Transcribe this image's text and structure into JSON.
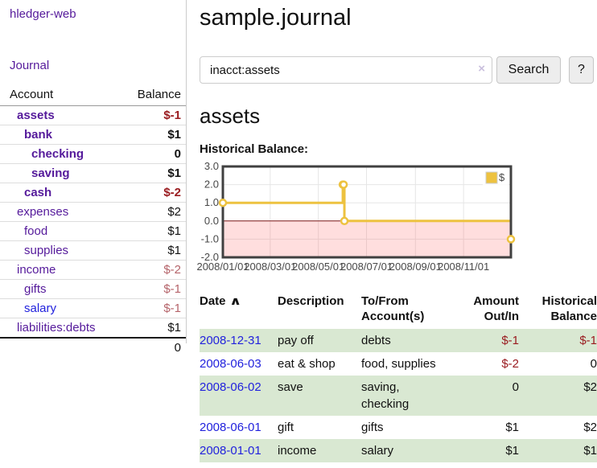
{
  "sidebar": {
    "app_title": "hledger-web",
    "journal_label": "Journal",
    "accounts_table": {
      "headers": {
        "account": "Account",
        "balance": "Balance"
      },
      "rows": [
        {
          "account": "assets",
          "balance": "$-1",
          "indent": 1,
          "bold": true,
          "balance_style": "neg-strong",
          "link_style": "purple"
        },
        {
          "account": "bank",
          "balance": "$1",
          "indent": 2,
          "bold": true,
          "balance_style": "normal",
          "link_style": "purple"
        },
        {
          "account": "checking",
          "balance": "0",
          "indent": 3,
          "bold": true,
          "balance_style": "normal",
          "link_style": "purple"
        },
        {
          "account": "saving",
          "balance": "$1",
          "indent": 3,
          "bold": true,
          "balance_style": "normal",
          "link_style": "purple"
        },
        {
          "account": "cash",
          "balance": "$-2",
          "indent": 2,
          "bold": true,
          "balance_style": "neg-strong",
          "link_style": "purple"
        },
        {
          "account": "expenses",
          "balance": "$2",
          "indent": 1,
          "bold": false,
          "balance_style": "normal",
          "link_style": "purple"
        },
        {
          "account": "food",
          "balance": "$1",
          "indent": 2,
          "bold": false,
          "balance_style": "normal",
          "link_style": "purple"
        },
        {
          "account": "supplies",
          "balance": "$1",
          "indent": 2,
          "bold": false,
          "balance_style": "normal",
          "link_style": "purple"
        },
        {
          "account": "income",
          "balance": "$-2",
          "indent": 1,
          "bold": false,
          "balance_style": "neg-soft",
          "link_style": "purple"
        },
        {
          "account": "gifts",
          "balance": "$-1",
          "indent": 2,
          "bold": false,
          "balance_style": "neg-soft",
          "link_style": "purple"
        },
        {
          "account": "salary",
          "balance": "$-1",
          "indent": 2,
          "bold": false,
          "balance_style": "neg-soft",
          "link_style": "blue"
        },
        {
          "account": "liabilities:debts",
          "balance": "$1",
          "indent": 1,
          "bold": false,
          "balance_style": "normal",
          "link_style": "purple"
        }
      ],
      "total": "0"
    }
  },
  "header": {
    "title": "sample.journal"
  },
  "search": {
    "query": "inacct:assets",
    "clear_icon": "×",
    "button_label": "Search",
    "help_label": "?"
  },
  "account_page": {
    "title": "assets",
    "chart_title": "Historical Balance:"
  },
  "chart_data": {
    "type": "line",
    "step": true,
    "title": "Historical Balance:",
    "series": [
      {
        "name": "$",
        "color": "#edc240",
        "points": [
          [
            "2008-01-01",
            1
          ],
          [
            "2008-06-01",
            2
          ],
          [
            "2008-06-02",
            2
          ],
          [
            "2008-06-03",
            0
          ],
          [
            "2008-12-31",
            -1
          ]
        ]
      }
    ],
    "xlim": [
      "2008-01-01",
      "2008-12-31"
    ],
    "ylim": [
      -2,
      3
    ],
    "y_ticks": [
      3.0,
      2.0,
      1.0,
      0.0,
      -1.0,
      -2.0
    ],
    "y_tick_labels": [
      "3.0",
      "2.0",
      "1.0",
      "0.0",
      "-1.0",
      "-2.0"
    ],
    "x_ticks": [
      "2008-01-01",
      "2008-03-01",
      "2008-05-01",
      "2008-07-01",
      "2008-09-01",
      "2008-11-01"
    ],
    "x_tick_labels": [
      "2008/01/01",
      "2008/03/01",
      "2008/05/01",
      "2008/07/01",
      "2008/09/01",
      "2008/11/01"
    ],
    "grid": true,
    "legend_position": "top-right",
    "legend_labels": [
      "$"
    ],
    "negative_region_color": "rgba(255,70,70,0.18)",
    "zero_line_color": "#7e1d1d",
    "border_color": "#404040",
    "grid_color": "#e6e6e6",
    "tick_label_color": "#484848"
  },
  "register_table": {
    "headers": {
      "date": "Date",
      "sort_icon": "∧",
      "description": "Description",
      "accounts": "To/From\nAccount(s)",
      "amount": "Amount\nOut/In",
      "balance": "Historical\nBalance"
    },
    "rows": [
      {
        "date": "2008-12-31",
        "description": "pay off",
        "accounts": "debts",
        "amount": "$-1",
        "balance": "$-1",
        "amount_style": "neg-strong",
        "balance_style": "neg-strong",
        "highlight": true
      },
      {
        "date": "2008-06-03",
        "description": "eat & shop",
        "accounts": "food, supplies",
        "amount": "$-2",
        "balance": "0",
        "amount_style": "neg-strong",
        "balance_style": "normal",
        "highlight": false
      },
      {
        "date": "2008-06-02",
        "description": "save",
        "accounts": "saving,\nchecking",
        "amount": "0",
        "balance": "$2",
        "amount_style": "normal",
        "balance_style": "normal",
        "highlight": true
      },
      {
        "date": "2008-06-01",
        "description": "gift",
        "accounts": "gifts",
        "amount": "$1",
        "balance": "$2",
        "amount_style": "normal",
        "balance_style": "normal",
        "highlight": false
      },
      {
        "date": "2008-01-01",
        "description": "income",
        "accounts": "salary",
        "amount": "$1",
        "balance": "$1",
        "amount_style": "normal",
        "balance_style": "normal",
        "highlight": true
      }
    ]
  }
}
